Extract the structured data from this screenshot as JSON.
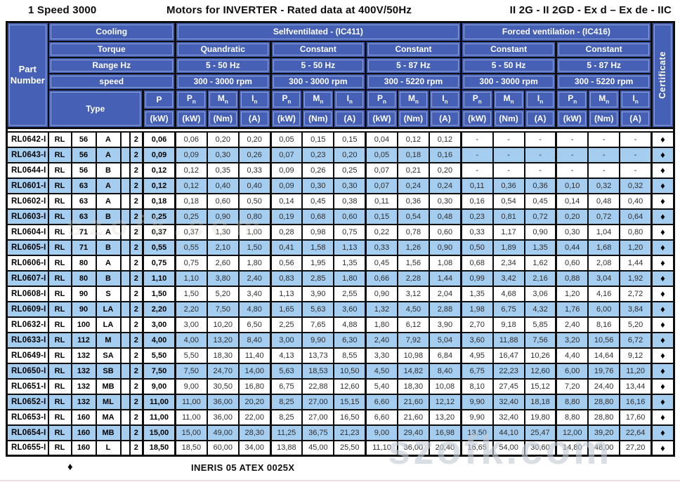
{
  "title": {
    "left": "1 Speed 3000",
    "center": "Motors for INVERTER - Rated data at 400V/50Hz",
    "right": "II 2G - II 2GD - Ex d – Ex de - IIC"
  },
  "header": {
    "part_label_line1": "Part",
    "part_label_line2": "Number",
    "cooling_label": "Cooling",
    "torque_label": "Torque",
    "range_label": "Range Hz",
    "speed_label": "speed",
    "type_label": "Type",
    "p_label": "P",
    "p_unit": "(kW)",
    "certificate_label": "Certificate",
    "ventilation": [
      {
        "label": "Selfventilated - (IC411)"
      },
      {
        "label": "Forced ventilation - (IC416)"
      }
    ],
    "groups": [
      {
        "torque": "Quandratic",
        "range": "5 - 50 Hz",
        "speed": "300 - 3000 rpm"
      },
      {
        "torque": "Constant",
        "range": "5 - 50 Hz",
        "speed": "300 - 3000 rpm"
      },
      {
        "torque": "Constant",
        "range": "5 - 87 Hz",
        "speed": "300 - 5220 rpm"
      },
      {
        "torque": "Constant",
        "range": "5 - 50 Hz",
        "speed": "300 - 3000 rpm"
      },
      {
        "torque": "Constant",
        "range": "5 - 87 Hz",
        "speed": "300 - 5220 rpm"
      }
    ],
    "symbols": [
      {
        "base": "P",
        "sub": "n"
      },
      {
        "base": "M",
        "sub": "n"
      },
      {
        "base": "I",
        "sub": "n"
      }
    ],
    "units": [
      "(kW)",
      "(Nm)",
      "(A)"
    ]
  },
  "certificate_symbol": "♦",
  "rows": [
    {
      "part": "RL0642-I",
      "type": [
        "RL",
        "56",
        "A",
        "",
        "2"
      ],
      "p": "0,06",
      "values": [
        "0,06",
        "0,20",
        "0,20",
        "0,05",
        "0,15",
        "0,15",
        "0,04",
        "0,12",
        "0,12",
        "-",
        "-",
        "-",
        "-",
        "-",
        "-"
      ]
    },
    {
      "part": "RL0643-I",
      "type": [
        "RL",
        "56",
        "A",
        "",
        "2"
      ],
      "p": "0,09",
      "values": [
        "0,09",
        "0,30",
        "0,26",
        "0,07",
        "0,23",
        "0,20",
        "0,05",
        "0,18",
        "0,16",
        "-",
        "-",
        "-",
        "-",
        "-",
        "-"
      ]
    },
    {
      "part": "RL0644-I",
      "type": [
        "RL",
        "56",
        "B",
        "",
        "2"
      ],
      "p": "0,12",
      "values": [
        "0,12",
        "0,35",
        "0,33",
        "0,09",
        "0,26",
        "0,25",
        "0,07",
        "0,21",
        "0,20",
        "-",
        "-",
        "-",
        "-",
        "-",
        "-"
      ]
    },
    {
      "part": "RL0601-I",
      "type": [
        "RL",
        "63",
        "A",
        "",
        "2"
      ],
      "p": "0,12",
      "values": [
        "0,12",
        "0,40",
        "0,40",
        "0,09",
        "0,30",
        "0,30",
        "0,07",
        "0,24",
        "0,24",
        "0,11",
        "0,36",
        "0,36",
        "0,10",
        "0,32",
        "0,32"
      ]
    },
    {
      "part": "RL0602-I",
      "type": [
        "RL",
        "63",
        "A",
        "",
        "2"
      ],
      "p": "0,18",
      "values": [
        "0,18",
        "0,60",
        "0,50",
        "0,14",
        "0,45",
        "0,38",
        "0,11",
        "0,36",
        "0,30",
        "0,16",
        "0,54",
        "0,45",
        "0,14",
        "0,48",
        "0,40"
      ]
    },
    {
      "part": "RL0603-I",
      "type": [
        "RL",
        "63",
        "B",
        "",
        "2"
      ],
      "p": "0,25",
      "values": [
        "0,25",
        "0,90",
        "0,80",
        "0,19",
        "0,68",
        "0,60",
        "0,15",
        "0,54",
        "0,48",
        "0,23",
        "0,81",
        "0,72",
        "0,20",
        "0,72",
        "0,64"
      ]
    },
    {
      "part": "RL0604-I",
      "type": [
        "RL",
        "71",
        "A",
        "",
        "2"
      ],
      "p": "0,37",
      "values": [
        "0,37",
        "1,30",
        "1,00",
        "0,28",
        "0,98",
        "0,75",
        "0,22",
        "0,78",
        "0,60",
        "0,33",
        "1,17",
        "0,90",
        "0,30",
        "1,04",
        "0,80"
      ]
    },
    {
      "part": "RL0605-I",
      "type": [
        "RL",
        "71",
        "B",
        "",
        "2"
      ],
      "p": "0,55",
      "values": [
        "0,55",
        "2,10",
        "1,50",
        "0,41",
        "1,58",
        "1,13",
        "0,33",
        "1,26",
        "0,90",
        "0,50",
        "1,89",
        "1,35",
        "0,44",
        "1,68",
        "1,20"
      ]
    },
    {
      "part": "RL0606-I",
      "type": [
        "RL",
        "80",
        "A",
        "",
        "2"
      ],
      "p": "0,75",
      "values": [
        "0,75",
        "2,60",
        "1,80",
        "0,56",
        "1,95",
        "1,35",
        "0,45",
        "1,56",
        "1,08",
        "0,68",
        "2,34",
        "1,62",
        "0,60",
        "2,08",
        "1,44"
      ]
    },
    {
      "part": "RL0607-I",
      "type": [
        "RL",
        "80",
        "B",
        "",
        "2"
      ],
      "p": "1,10",
      "values": [
        "1,10",
        "3,80",
        "2,40",
        "0,83",
        "2,85",
        "1,80",
        "0,66",
        "2,28",
        "1,44",
        "0,99",
        "3,42",
        "2,16",
        "0,88",
        "3,04",
        "1,92"
      ]
    },
    {
      "part": "RL0608-I",
      "type": [
        "RL",
        "90",
        "S",
        "",
        "2"
      ],
      "p": "1,50",
      "values": [
        "1,50",
        "5,20",
        "3,40",
        "1,13",
        "3,90",
        "2,55",
        "0,90",
        "3,12",
        "2,04",
        "1,35",
        "4,68",
        "3,06",
        "1,20",
        "4,16",
        "2,72"
      ]
    },
    {
      "part": "RL0609-I",
      "type": [
        "RL",
        "90",
        "LA",
        "",
        "2"
      ],
      "p": "2,20",
      "values": [
        "2,20",
        "7,50",
        "4,80",
        "1,65",
        "5,63",
        "3,60",
        "1,32",
        "4,50",
        "2,88",
        "1,98",
        "6,75",
        "4,32",
        "1,76",
        "6,00",
        "3,84"
      ]
    },
    {
      "part": "RL0632-I",
      "type": [
        "RL",
        "100",
        "LA",
        "",
        "2"
      ],
      "p": "3,00",
      "values": [
        "3,00",
        "10,20",
        "6,50",
        "2,25",
        "7,65",
        "4,88",
        "1,80",
        "6,12",
        "3,90",
        "2,70",
        "9,18",
        "5,85",
        "2,40",
        "8,16",
        "5,20"
      ]
    },
    {
      "part": "RL0633-I",
      "type": [
        "RL",
        "112",
        "M",
        "",
        "2"
      ],
      "p": "4,00",
      "values": [
        "4,00",
        "13,20",
        "8,40",
        "3,00",
        "9,90",
        "6,30",
        "2,40",
        "7,92",
        "5,04",
        "3,60",
        "11,88",
        "7,56",
        "3,20",
        "10,56",
        "6,72"
      ]
    },
    {
      "part": "RL0649-I",
      "type": [
        "RL",
        "132",
        "SA",
        "",
        "2"
      ],
      "p": "5,50",
      "values": [
        "5,50",
        "18,30",
        "11,40",
        "4,13",
        "13,73",
        "8,55",
        "3,30",
        "10,98",
        "6,84",
        "4,95",
        "16,47",
        "10,26",
        "4,40",
        "14,64",
        "9,12"
      ]
    },
    {
      "part": "RL0650-I",
      "type": [
        "RL",
        "132",
        "SB",
        "",
        "2"
      ],
      "p": "7,50",
      "values": [
        "7,50",
        "24,70",
        "14,00",
        "5,63",
        "18,53",
        "10,50",
        "4,50",
        "14,82",
        "8,40",
        "6,75",
        "22,23",
        "12,60",
        "6,00",
        "19,76",
        "11,20"
      ]
    },
    {
      "part": "RL0651-I",
      "type": [
        "RL",
        "132",
        "MB",
        "",
        "2"
      ],
      "p": "9,00",
      "values": [
        "9,00",
        "30,50",
        "16,80",
        "6,75",
        "22,88",
        "12,60",
        "5,40",
        "18,30",
        "10,08",
        "8,10",
        "27,45",
        "15,12",
        "7,20",
        "24,40",
        "13,44"
      ]
    },
    {
      "part": "RL0652-I",
      "type": [
        "RL",
        "132",
        "ML",
        "",
        "2"
      ],
      "p": "11,00",
      "values": [
        "11,00",
        "36,00",
        "20,20",
        "8,25",
        "27,00",
        "15,15",
        "6,60",
        "21,60",
        "12,12",
        "9,90",
        "32,40",
        "18,18",
        "8,80",
        "28,80",
        "16,16"
      ]
    },
    {
      "part": "RL0653-I",
      "type": [
        "RL",
        "160",
        "MA",
        "",
        "2"
      ],
      "p": "11,00",
      "values": [
        "11,00",
        "36,00",
        "22,00",
        "8,25",
        "27,00",
        "16,50",
        "6,60",
        "21,60",
        "13,20",
        "9,90",
        "32,40",
        "19,80",
        "8,80",
        "28,80",
        "17,60"
      ]
    },
    {
      "part": "RL0654-I",
      "type": [
        "RL",
        "160",
        "MB",
        "",
        "2"
      ],
      "p": "15,00",
      "values": [
        "15,00",
        "49,00",
        "28,30",
        "11,25",
        "36,75",
        "21,23",
        "9,00",
        "29,40",
        "16,98",
        "13,50",
        "44,10",
        "25,47",
        "12,00",
        "39,20",
        "22,64"
      ]
    },
    {
      "part": "RL0655-I",
      "type": [
        "RL",
        "160",
        "L",
        "",
        "2"
      ],
      "p": "18,50",
      "values": [
        "18,50",
        "60,00",
        "34,00",
        "13,88",
        "45,00",
        "25,50",
        "11,10",
        "36,00",
        "20,40",
        "16,65",
        "54,00",
        "30,60",
        "14,80",
        "48,00",
        "27,20"
      ]
    }
  ],
  "footer": {
    "symbol": "♦",
    "text": "INERIS 05 ATEX 0025X"
  },
  "watermark": "szofk.com",
  "colors": {
    "header_blue": "#4560b5",
    "row_blue": "#a5cdf0",
    "border_black": "#0d0d0d",
    "diamond_black": "#000000"
  }
}
